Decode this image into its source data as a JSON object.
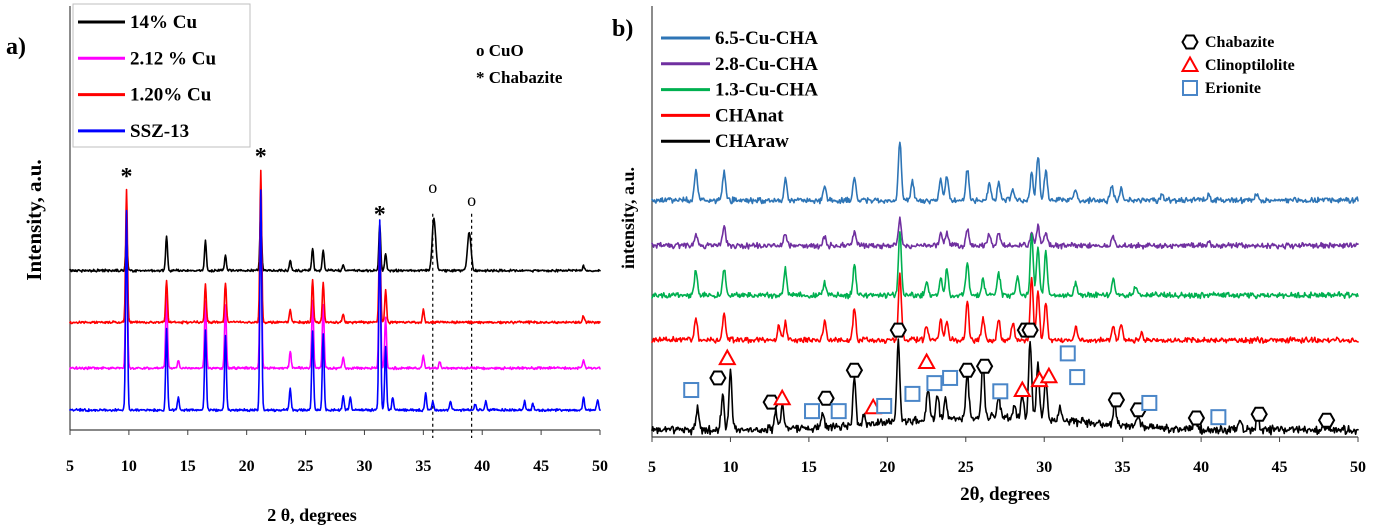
{
  "chart_data": [
    {
      "panel_label": "a)",
      "type": "line",
      "xlabel": "2 θ, degrees",
      "ylabel": "Intensity, a.u.",
      "xlim": [
        5,
        50
      ],
      "ylim": [
        0,
        100
      ],
      "xticks": [
        5,
        10,
        15,
        20,
        25,
        30,
        35,
        40,
        45,
        50
      ],
      "grid": false,
      "legend_position": "top-left",
      "peak_fwhm": 0.18,
      "series": [
        {
          "name": "14% Cu",
          "color": "#000000",
          "offset": 37.6,
          "noise": 0.35,
          "peaks": [
            [
              9.8,
              8.5
            ],
            [
              13.2,
              8.3
            ],
            [
              16.5,
              7.0
            ],
            [
              18.2,
              3.5
            ],
            [
              21.2,
              14.0
            ],
            [
              23.7,
              2.5
            ],
            [
              25.6,
              5.2
            ],
            [
              26.5,
              5.0
            ],
            [
              28.2,
              1.5
            ],
            [
              31.3,
              11.0
            ],
            [
              31.8,
              4.0
            ],
            [
              35.9,
              12.3,
              0.35
            ],
            [
              38.9,
              9.0,
              0.35
            ],
            [
              48.6,
              1.2
            ]
          ]
        },
        {
          "name": "2.12 % Cu",
          "color": "#ff00ff",
          "offset": 14.6,
          "noise": 0.35,
          "peaks": [
            [
              9.8,
              36.0
            ],
            [
              13.2,
              17.0
            ],
            [
              14.2,
              2.0
            ],
            [
              16.5,
              16.0
            ],
            [
              18.2,
              15.0
            ],
            [
              21.2,
              40.0
            ],
            [
              23.7,
              4.0
            ],
            [
              25.6,
              16.0
            ],
            [
              26.5,
              15.0
            ],
            [
              28.2,
              2.5
            ],
            [
              31.3,
              30.0
            ],
            [
              31.8,
              12.0
            ],
            [
              35.0,
              3.0
            ],
            [
              36.4,
              1.5
            ],
            [
              48.6,
              2.0
            ]
          ]
        },
        {
          "name": "1.20% Cu",
          "color": "#ff0000",
          "offset": 25.4,
          "noise": 0.35,
          "peaks": [
            [
              9.8,
              31.5
            ],
            [
              13.2,
              10.0
            ],
            [
              16.5,
              9.0
            ],
            [
              18.2,
              9.5
            ],
            [
              21.2,
              36.0
            ],
            [
              23.7,
              3.0
            ],
            [
              25.6,
              10.0
            ],
            [
              26.5,
              9.5
            ],
            [
              28.2,
              2.0
            ],
            [
              31.3,
              20.5
            ],
            [
              31.8,
              7.5
            ],
            [
              35.0,
              3.0
            ],
            [
              48.6,
              1.5
            ]
          ]
        },
        {
          "name": "SSZ-13",
          "color": "#0000ff",
          "offset": 4.7,
          "noise": 0.35,
          "peaks": [
            [
              9.8,
              47.0
            ],
            [
              13.2,
              19.0
            ],
            [
              14.2,
              3.0
            ],
            [
              16.5,
              19.0
            ],
            [
              18.2,
              17.7
            ],
            [
              21.2,
              52.0
            ],
            [
              23.7,
              5.0
            ],
            [
              25.6,
              18.5
            ],
            [
              26.5,
              18.0
            ],
            [
              28.2,
              3.5
            ],
            [
              28.8,
              3.0
            ],
            [
              31.3,
              45.0
            ],
            [
              31.8,
              15.0
            ],
            [
              32.4,
              3.0
            ],
            [
              35.2,
              4.0
            ],
            [
              35.8,
              2.0
            ],
            [
              37.3,
              2.0
            ],
            [
              39.4,
              1.5
            ],
            [
              40.3,
              2.0
            ],
            [
              43.6,
              2.0
            ],
            [
              44.3,
              1.5
            ],
            [
              48.6,
              3.0
            ],
            [
              49.8,
              2.5
            ]
          ]
        }
      ],
      "legend_notes": [
        "o CuO",
        "* Chabazite"
      ],
      "peak_annotations": [
        {
          "label": "*",
          "two_theta": 9.8,
          "intensity": 60.1
        },
        {
          "label": "*",
          "two_theta": 21.2,
          "intensity": 64.9
        },
        {
          "label": "*",
          "two_theta": 31.3,
          "intensity": 51.2
        },
        {
          "label": "o",
          "two_theta": 35.8,
          "intensity": 57.3
        },
        {
          "label": "o",
          "two_theta": 39.1,
          "intensity": 54.2
        }
      ],
      "dashed_reference_lines": [
        {
          "two_theta": 35.8,
          "top_intensity": 51.0
        },
        {
          "two_theta": 39.1,
          "top_intensity": 51.0
        }
      ]
    },
    {
      "panel_label": "b)",
      "type": "line",
      "xlabel": "2θ, degrees",
      "ylabel": "intensity, a.u.",
      "xlim": [
        5,
        50
      ],
      "ylim": [
        0,
        100
      ],
      "xticks": [
        5,
        10,
        15,
        20,
        25,
        30,
        35,
        40,
        45,
        50
      ],
      "grid": false,
      "legend_position": "top-left",
      "peak_fwhm": 0.22,
      "series": [
        {
          "name": "6.5-Cu-CHA",
          "color": "#2e75b6",
          "offset": 54.9,
          "noise": 0.8,
          "peaks": [
            [
              7.8,
              7.0
            ],
            [
              9.6,
              7.0
            ],
            [
              13.5,
              5.0
            ],
            [
              16.0,
              3.5
            ],
            [
              17.9,
              5.5
            ],
            [
              20.8,
              14.0
            ],
            [
              21.6,
              4.5
            ],
            [
              23.4,
              5.0
            ],
            [
              23.8,
              5.5
            ],
            [
              25.1,
              7.0
            ],
            [
              26.5,
              4.0
            ],
            [
              27.1,
              4.0
            ],
            [
              28.0,
              2.5
            ],
            [
              29.2,
              6.5
            ],
            [
              29.6,
              10.5
            ],
            [
              30.1,
              7.0
            ],
            [
              32.0,
              2.5
            ],
            [
              34.3,
              3.5
            ],
            [
              34.9,
              2.5
            ],
            [
              37.5,
              1.5
            ],
            [
              40.5,
              1.5
            ],
            [
              43.5,
              1.5
            ]
          ]
        },
        {
          "name": "2.8-Cu-CHA",
          "color": "#7030a0",
          "offset": 44.4,
          "noise": 0.8,
          "peaks": [
            [
              7.8,
              3.0
            ],
            [
              9.6,
              4.5
            ],
            [
              13.5,
              3.0
            ],
            [
              16.0,
              2.0
            ],
            [
              17.9,
              3.5
            ],
            [
              20.8,
              6.0
            ],
            [
              23.4,
              3.0
            ],
            [
              23.8,
              3.0
            ],
            [
              25.1,
              4.0
            ],
            [
              26.5,
              2.5
            ],
            [
              27.1,
              3.0
            ],
            [
              29.2,
              3.0
            ],
            [
              29.6,
              4.5
            ],
            [
              30.1,
              3.0
            ],
            [
              34.4,
              2.0
            ],
            [
              40.5,
              1.0
            ]
          ]
        },
        {
          "name": "1.3-Cu-CHA",
          "color": "#00b050",
          "offset": 32.9,
          "noise": 0.8,
          "peaks": [
            [
              7.8,
              6.0
            ],
            [
              9.6,
              6.0
            ],
            [
              13.5,
              6.0
            ],
            [
              16.0,
              3.0
            ],
            [
              17.9,
              7.0
            ],
            [
              20.8,
              14.5
            ],
            [
              22.5,
              3.0
            ],
            [
              23.4,
              4.0
            ],
            [
              23.8,
              6.0
            ],
            [
              25.1,
              7.5
            ],
            [
              26.1,
              4.0
            ],
            [
              27.1,
              5.0
            ],
            [
              28.3,
              4.0
            ],
            [
              29.2,
              14.0
            ],
            [
              29.6,
              11.0
            ],
            [
              30.1,
              10.0
            ],
            [
              32.0,
              3.0
            ],
            [
              34.4,
              4.0
            ],
            [
              35.8,
              2.0
            ]
          ]
        },
        {
          "name": "CHAnat",
          "color": "#ff0000",
          "offset": 22.5,
          "noise": 0.8,
          "peaks": [
            [
              7.8,
              5.0
            ],
            [
              9.6,
              6.0
            ],
            [
              13.1,
              3.5
            ],
            [
              13.5,
              4.0
            ],
            [
              16.0,
              4.0
            ],
            [
              17.9,
              7.5
            ],
            [
              20.8,
              15.7
            ],
            [
              22.5,
              3.5
            ],
            [
              23.4,
              5.0
            ],
            [
              23.8,
              4.0
            ],
            [
              25.1,
              9.0
            ],
            [
              26.1,
              5.0
            ],
            [
              27.1,
              5.0
            ],
            [
              28.0,
              4.0
            ],
            [
              29.2,
              14.5
            ],
            [
              29.6,
              11.5
            ],
            [
              30.1,
              9.0
            ],
            [
              32.0,
              3.0
            ],
            [
              34.4,
              3.0
            ],
            [
              34.9,
              3.5
            ],
            [
              36.2,
              2.0
            ]
          ]
        },
        {
          "name": "CHAraw",
          "color": "#000000",
          "offset": 1.6,
          "noise": 1.2,
          "peaks": [
            [
              7.9,
              5.0
            ],
            [
              9.5,
              8.0
            ],
            [
              10.0,
              14.0
            ],
            [
              12.9,
              4.0
            ],
            [
              13.3,
              6.0
            ],
            [
              15.9,
              3.5
            ],
            [
              17.9,
              11.0
            ],
            [
              18.5,
              2.5
            ],
            [
              20.7,
              18.5
            ],
            [
              22.6,
              7.5
            ],
            [
              23.2,
              5.5
            ],
            [
              23.7,
              4.5
            ],
            [
              25.1,
              10.5
            ],
            [
              26.1,
              13.0
            ],
            [
              27.1,
              4.5
            ],
            [
              28.1,
              2.5
            ],
            [
              28.6,
              5.5
            ],
            [
              29.1,
              18.5
            ],
            [
              29.6,
              12.5
            ],
            [
              30.1,
              9.5
            ],
            [
              31.0,
              3.0
            ],
            [
              34.5,
              5.0
            ],
            [
              36.0,
              3.0
            ],
            [
              39.6,
              2.0
            ],
            [
              42.5,
              2.0
            ],
            [
              43.6,
              3.0
            ],
            [
              47.8,
              1.5
            ],
            [
              26.5,
              3.0,
              14.0
            ]
          ]
        }
      ],
      "phase_markers": [
        {
          "phase": "Chabazite",
          "symbol": "hexagon",
          "color": "#000000",
          "points": [
            [
              9.2,
              13.7
            ],
            [
              12.6,
              8.1
            ],
            [
              16.1,
              9.0
            ],
            [
              17.9,
              15.5
            ],
            [
              20.7,
              24.8
            ],
            [
              25.1,
              15.5
            ],
            [
              26.2,
              16.4
            ],
            [
              28.8,
              24.8
            ],
            [
              29.1,
              24.8
            ],
            [
              34.6,
              8.6
            ],
            [
              36.0,
              6.3
            ],
            [
              39.7,
              4.4
            ],
            [
              43.7,
              5.3
            ],
            [
              48.0,
              3.9
            ]
          ]
        },
        {
          "phase": "Clinoptilolite",
          "symbol": "triangle",
          "color": "#ff0000",
          "points": [
            [
              9.8,
              18.3
            ],
            [
              13.3,
              9.0
            ],
            [
              19.1,
              6.9
            ],
            [
              22.5,
              17.4
            ],
            [
              28.6,
              10.9
            ],
            [
              29.7,
              13.2
            ],
            [
              30.3,
              14.1
            ]
          ]
        },
        {
          "phase": "Erionite",
          "symbol": "square",
          "color": "#4a86c8",
          "points": [
            [
              7.5,
              10.9
            ],
            [
              15.2,
              6.0
            ],
            [
              16.9,
              6.0
            ],
            [
              19.8,
              7.2
            ],
            [
              21.6,
              10.0
            ],
            [
              23.0,
              12.5
            ],
            [
              24.0,
              13.7
            ],
            [
              27.2,
              10.6
            ],
            [
              31.5,
              19.4
            ],
            [
              32.1,
              13.9
            ],
            [
              36.7,
              7.9
            ],
            [
              41.1,
              4.6
            ]
          ]
        }
      ]
    }
  ]
}
